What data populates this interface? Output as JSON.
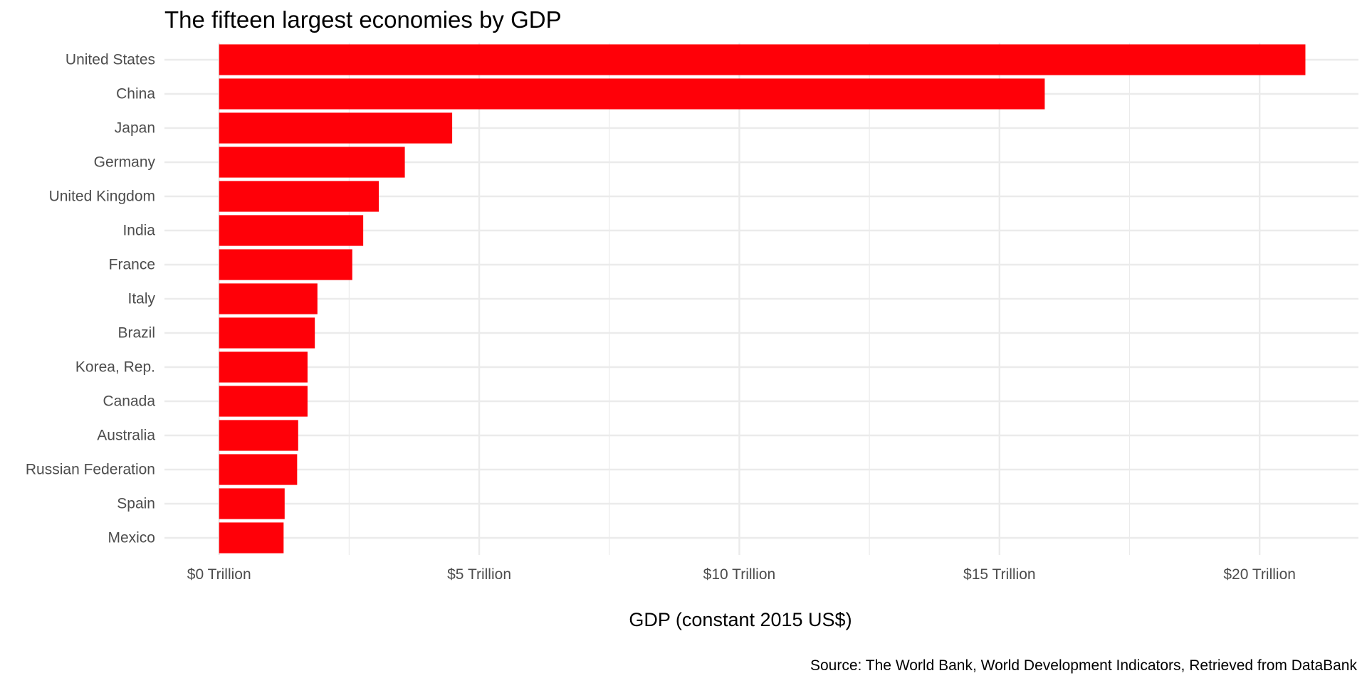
{
  "chart_data": {
    "type": "bar",
    "orientation": "horizontal",
    "title": "The fifteen largest economies by GDP",
    "xlabel": "GDP (constant 2015 US$)",
    "ylabel": "",
    "caption": "Source: The World Bank, World Development Indicators, Retrieved from DataBank",
    "categories": [
      "United States",
      "China",
      "Japan",
      "Germany",
      "United Kingdom",
      "India",
      "France",
      "Italy",
      "Brazil",
      "Korea, Rep.",
      "Canada",
      "Australia",
      "Russian Federation",
      "Spain",
      "Mexico"
    ],
    "values": [
      20.88,
      15.87,
      4.48,
      3.57,
      3.07,
      2.77,
      2.56,
      1.89,
      1.84,
      1.7,
      1.7,
      1.52,
      1.5,
      1.26,
      1.24
    ],
    "value_unit": "Trillion US$",
    "xlim": [
      -1.05,
      21.9
    ],
    "xticks": [
      0,
      5,
      10,
      15,
      20
    ],
    "xtick_labels": [
      "$0 Trillion",
      "$5 Trillion",
      "$10 Trillion",
      "$15 Trillion",
      "$20 Trillion"
    ],
    "grid": true,
    "legend": "none",
    "bar_color": "#ff0008",
    "grid_color": "#ebebeb"
  }
}
